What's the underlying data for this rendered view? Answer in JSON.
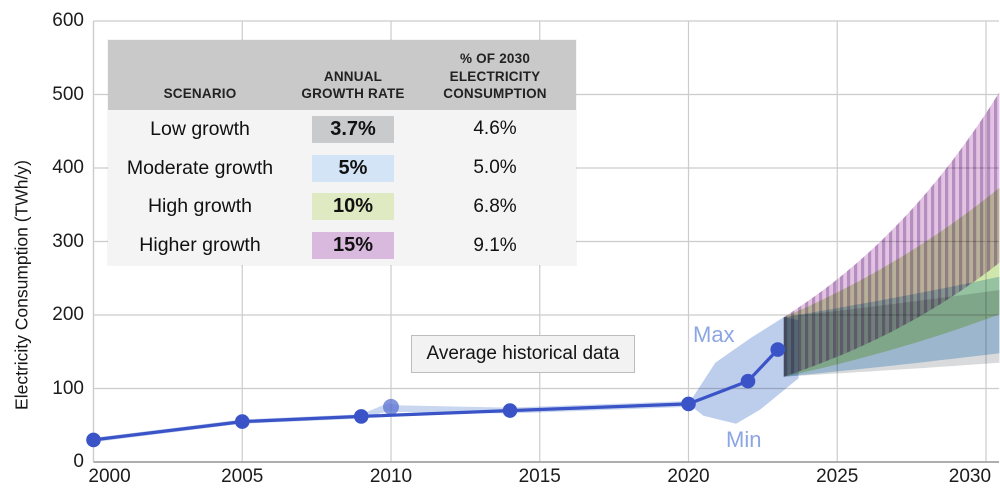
{
  "colors": {
    "line": "#3a54c8",
    "line_light": "#5a71d1",
    "minmax_band": "#bdcdec",
    "historical_band": "#c9d6f0",
    "grid": "#cccccc",
    "axis": "#a3a3a3",
    "hatch": "#9b72ad",
    "maxmin_label": "#8ca5e3",
    "annotation_bg": "#f2f2f2",
    "annotation_border": "#bdbdbd",
    "table_header_bg": "#c9c9c9",
    "table_body_bg": "#f4f4f4"
  },
  "y_axis": {
    "label": "Electricity Consumption (TWh/y)",
    "ticks": [
      0,
      100,
      200,
      300,
      400,
      500,
      600
    ],
    "tick_labels": [
      "0",
      "100",
      "200",
      "300",
      "400",
      "500",
      "600"
    ]
  },
  "x_axis": {
    "ticks": [
      2000,
      2005,
      2010,
      2015,
      2020,
      2025,
      2030
    ],
    "tick_labels": [
      "2000",
      "2005",
      "2010",
      "2015",
      "2020",
      "2025",
      "2030"
    ]
  },
  "annotation": {
    "label": "Average historical data"
  },
  "band_labels": {
    "max": "Max",
    "min": "Min"
  },
  "table": {
    "headers": [
      "SCENARIO",
      "ANNUAL GROWTH RATE",
      "% OF 2030 ELECTRICITY CONSUMPTION"
    ],
    "rows": [
      {
        "scenario": "Low growth",
        "rate": "3.7%",
        "rate_bg": "#c8cacc",
        "fan_color": "#d9dadb",
        "share": "4.6%"
      },
      {
        "scenario": "Moderate growth",
        "rate": "5%",
        "rate_bg": "#d2e4f6",
        "fan_color": "#b8d6ef",
        "share": "5.0%"
      },
      {
        "scenario": "High growth",
        "rate": "10%",
        "rate_bg": "#dfeac3",
        "fan_color": "#cfe7ab",
        "share": "6.8%"
      },
      {
        "scenario": "Higher growth",
        "rate": "15%",
        "rate_bg": "#d9bade",
        "fan_color": "#e2c3e4",
        "share": "9.1%"
      }
    ]
  },
  "chart_data": {
    "type": "line",
    "title": "",
    "xlabel": "",
    "ylabel": "Electricity Consumption (TWh/y)",
    "xlim": [
      2000,
      2030.5
    ],
    "ylim": [
      0,
      600
    ],
    "grid": true,
    "historical": {
      "name": "Average historical data",
      "x": [
        2000,
        2005,
        2009,
        2014,
        2020,
        2022,
        2023
      ],
      "y": [
        30,
        55,
        62,
        70,
        79,
        110,
        153
      ]
    },
    "historical_range_point": {
      "x": 2010,
      "y": 75
    },
    "historical_band_polygon": [
      [
        2000,
        33
      ],
      [
        2005,
        58
      ],
      [
        2009,
        65
      ],
      [
        2009.9,
        80
      ],
      [
        2010.3,
        77
      ],
      [
        2014,
        74
      ],
      [
        2020,
        83
      ],
      [
        2020,
        75
      ],
      [
        2014,
        66
      ],
      [
        2010.3,
        68
      ],
      [
        2009.9,
        69
      ],
      [
        2009,
        59
      ],
      [
        2005,
        52
      ],
      [
        2000,
        27
      ]
    ],
    "minmax_band_polygon": [
      [
        2020,
        79
      ],
      [
        2020.9,
        135
      ],
      [
        2022.1,
        169
      ],
      [
        2023.2,
        197
      ],
      [
        2023.7,
        193
      ],
      [
        2023.7,
        114
      ],
      [
        2022.4,
        71
      ],
      [
        2021.6,
        52
      ],
      [
        2020.5,
        63
      ]
    ],
    "projections": [
      {
        "name": "Low growth",
        "annual_growth_rate_pct": 3.7,
        "share_of_2030_consumption_pct": 4.6,
        "start_year": 2023.2,
        "end_year": 2030.45,
        "start_range": [
          116,
          197
        ],
        "end_range": [
          135,
          234
        ],
        "hatch": false
      },
      {
        "name": "Moderate growth",
        "annual_growth_rate_pct": 5,
        "share_of_2030_consumption_pct": 5.0,
        "start_year": 2023.2,
        "end_year": 2030.45,
        "start_range": [
          116,
          197
        ],
        "end_range": [
          148,
          252
        ],
        "hatch": false
      },
      {
        "name": "High growth",
        "annual_growth_rate_pct": 10,
        "share_of_2030_consumption_pct": 6.8,
        "start_year": 2023.2,
        "end_year": 2030.45,
        "start_range": [
          116,
          197
        ],
        "end_range": [
          201,
          373
        ],
        "hatch": false
      },
      {
        "name": "Higher growth",
        "annual_growth_rate_pct": 15,
        "share_of_2030_consumption_pct": 9.1,
        "start_year": 2023.2,
        "end_year": 2030.45,
        "start_range": [
          116,
          197
        ],
        "end_range": [
          271,
          503
        ],
        "hatch": true
      }
    ]
  }
}
